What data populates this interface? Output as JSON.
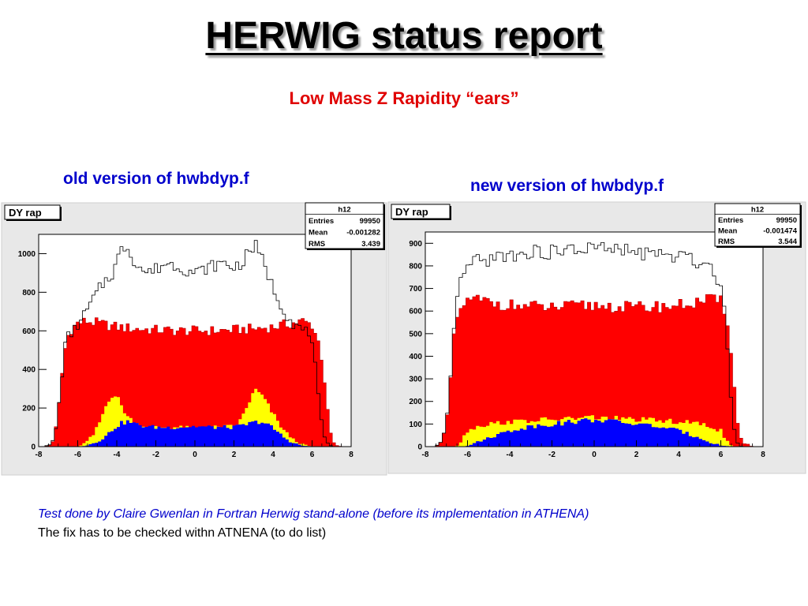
{
  "slide": {
    "title": "HERWIG status report",
    "subtitle": "Low Mass Z Rapidity “ears”",
    "caption_old": "old version of hwbdyp.f",
    "caption_new": "new version of hwbdyp.f",
    "note_italic": "Test done by Claire Gwenlan in Fortran Herwig stand-alone (before its implementation in ATHENA)",
    "note_plain": "The fix has to be checked withn ATNENA (to do list)"
  },
  "colors": {
    "title": "#000000",
    "subtitle": "#e00000",
    "caption": "#0000cc",
    "red_fill": "#ff0000",
    "yellow_fill": "#ffff00",
    "blue_fill": "#0000ff",
    "frame_bg": "#e8e8e8"
  },
  "chart_data": [
    {
      "type": "area",
      "title": "DY rap",
      "stats": {
        "name": "h12",
        "entries_label": "Entries",
        "entries": "99950",
        "mean_label": "Mean",
        "mean": "-0.001282",
        "rms_label": "RMS",
        "rms": "3.439"
      },
      "xlim": [
        -8,
        8
      ],
      "ylim": [
        0,
        1100
      ],
      "xticks": [
        -8,
        -6,
        -4,
        -2,
        0,
        2,
        4,
        6,
        8
      ],
      "yticks": [
        0,
        200,
        400,
        600,
        800,
        1000
      ],
      "series": [
        {
          "role": "outline",
          "x": [
            -8,
            -7.7,
            -7.4,
            -7.2,
            -7.0,
            -6.8,
            -6.6,
            -6.2,
            -5.8,
            -5.4,
            -5.0,
            -4.6,
            -4.4,
            -4.2,
            -4.0,
            -3.8,
            -3.5,
            -3.3,
            -3.0,
            -2.5,
            -2.0,
            -1.5,
            -1.0,
            -0.5,
            0,
            0.5,
            1.0,
            1.5,
            2.0,
            2.5,
            2.8,
            3.1,
            3.3,
            3.5,
            3.8,
            4.0,
            4.3,
            4.6,
            5.0,
            5.3,
            5.6,
            5.8,
            6.0,
            6.2,
            6.4,
            6.6,
            6.8,
            7.0,
            7.2,
            7.6,
            8
          ],
          "values": [
            0,
            0,
            10,
            40,
            180,
            380,
            560,
            600,
            660,
            730,
            800,
            860,
            880,
            900,
            960,
            1010,
            1050,
            1000,
            950,
            900,
            920,
            950,
            940,
            920,
            900,
            920,
            940,
            950,
            930,
            960,
            1020,
            1040,
            990,
            960,
            880,
            820,
            760,
            700,
            640,
            620,
            600,
            590,
            560,
            380,
            180,
            50,
            15,
            3,
            0,
            0,
            0
          ]
        },
        {
          "role": "red",
          "x": [
            -8,
            -7.7,
            -7.4,
            -7.2,
            -7.0,
            -6.8,
            -6.6,
            -6.4,
            -6.0,
            -5.5,
            -5.0,
            -4.5,
            -4.0,
            -3.0,
            -2.0,
            -1.0,
            0,
            1.0,
            2.0,
            3.0,
            4.0,
            4.5,
            5.0,
            5.5,
            6.0,
            6.2,
            6.4,
            6.6,
            6.8,
            7.0,
            7.2,
            7.6,
            8
          ],
          "values": [
            0,
            0,
            10,
            40,
            180,
            380,
            540,
            600,
            640,
            650,
            640,
            630,
            620,
            610,
            605,
            600,
            600,
            600,
            605,
            610,
            620,
            630,
            640,
            650,
            630,
            580,
            520,
            380,
            180,
            40,
            5,
            0,
            0
          ]
        },
        {
          "role": "yellow",
          "x": [
            -8,
            -6.5,
            -6.0,
            -5.6,
            -5.2,
            -4.9,
            -4.6,
            -4.3,
            -4.0,
            -3.7,
            -3.4,
            -3.0,
            -2.5,
            -2.0,
            -1.0,
            0,
            1.0,
            2.0,
            2.3,
            2.6,
            2.9,
            3.1,
            3.4,
            3.7,
            4.0,
            4.3,
            4.6,
            5.0,
            5.4,
            6.0,
            6.5,
            8
          ],
          "values": [
            0,
            0,
            0,
            20,
            60,
            120,
            200,
            270,
            260,
            200,
            150,
            120,
            100,
            100,
            100,
            95,
            100,
            105,
            130,
            190,
            260,
            290,
            270,
            220,
            170,
            120,
            80,
            40,
            15,
            0,
            0,
            0
          ]
        },
        {
          "role": "blue",
          "x": [
            -8,
            -6.0,
            -5.5,
            -5.0,
            -4.6,
            -4.2,
            -3.8,
            -3.4,
            -3.0,
            -2.5,
            -2.0,
            -1.0,
            0,
            1.0,
            2.0,
            2.5,
            3.0,
            3.4,
            3.8,
            4.2,
            4.6,
            5.0,
            5.5,
            6.0,
            8
          ],
          "values": [
            0,
            0,
            8,
            25,
            50,
            90,
            120,
            130,
            115,
            105,
            100,
            100,
            105,
            100,
            100,
            110,
            125,
            130,
            110,
            80,
            45,
            20,
            5,
            0,
            0
          ]
        }
      ]
    },
    {
      "type": "area",
      "title": "DY rap",
      "stats": {
        "name": "h12",
        "entries_label": "Entries",
        "entries": "99950",
        "mean_label": "Mean",
        "mean": "-0.001474",
        "rms_label": "RMS",
        "rms": "3.544"
      },
      "xlim": [
        -8,
        8
      ],
      "ylim": [
        0,
        950
      ],
      "xticks": [
        -8,
        -6,
        -4,
        -2,
        0,
        2,
        4,
        6,
        8
      ],
      "yticks": [
        0,
        100,
        200,
        300,
        400,
        500,
        600,
        700,
        800,
        900
      ],
      "series": [
        {
          "role": "outline",
          "x": [
            -8,
            -7.5,
            -7.2,
            -7.0,
            -6.8,
            -6.6,
            -6.4,
            -6.2,
            -6.0,
            -5.5,
            -5.0,
            -4.5,
            -4.0,
            -3.0,
            -2.0,
            -1.0,
            0,
            1.0,
            2.0,
            3.0,
            4.0,
            4.5,
            5.0,
            5.5,
            5.8,
            6.0,
            6.2,
            6.4,
            6.6,
            6.8,
            7.0,
            7.5,
            8
          ],
          "values": [
            0,
            0,
            20,
            100,
            300,
            600,
            700,
            760,
            800,
            820,
            830,
            840,
            850,
            860,
            860,
            870,
            880,
            870,
            860,
            850,
            840,
            830,
            820,
            800,
            760,
            700,
            600,
            300,
            100,
            20,
            0,
            0,
            0
          ]
        },
        {
          "role": "red",
          "x": [
            -8,
            -7.5,
            -7.2,
            -7.0,
            -6.8,
            -6.6,
            -6.4,
            -6.2,
            -6.0,
            -5.5,
            -5.0,
            -4.0,
            -3.0,
            -2.0,
            -1.0,
            0,
            1.0,
            2.0,
            3.0,
            4.0,
            5.0,
            5.5,
            6.0,
            6.2,
            6.4,
            6.6,
            6.8,
            7.0,
            7.5,
            8
          ],
          "values": [
            0,
            0,
            20,
            100,
            300,
            520,
            600,
            630,
            640,
            650,
            640,
            625,
            620,
            615,
            620,
            625,
            620,
            615,
            620,
            625,
            640,
            650,
            640,
            600,
            520,
            300,
            100,
            20,
            0,
            0
          ]
        },
        {
          "role": "yellow",
          "x": [
            -8,
            -6.6,
            -6.4,
            -6.2,
            -6.0,
            -5.5,
            -5.0,
            -4.0,
            -3.0,
            -2.0,
            -1.0,
            0,
            1.0,
            2.0,
            3.0,
            4.0,
            5.0,
            5.5,
            6.0,
            6.2,
            6.4,
            6.6,
            8
          ],
          "values": [
            0,
            0,
            10,
            40,
            70,
            90,
            100,
            110,
            115,
            120,
            125,
            130,
            125,
            120,
            115,
            110,
            100,
            90,
            70,
            40,
            10,
            0,
            0
          ]
        },
        {
          "role": "blue",
          "x": [
            -8,
            -6.5,
            -6.0,
            -5.5,
            -5.0,
            -4.0,
            -3.0,
            -2.0,
            -1.0,
            0,
            1.0,
            2.0,
            3.0,
            4.0,
            5.0,
            5.5,
            6.0,
            6.5,
            8
          ],
          "values": [
            0,
            0,
            5,
            20,
            40,
            70,
            90,
            100,
            110,
            120,
            110,
            100,
            90,
            70,
            40,
            20,
            5,
            0,
            0
          ]
        }
      ]
    }
  ]
}
